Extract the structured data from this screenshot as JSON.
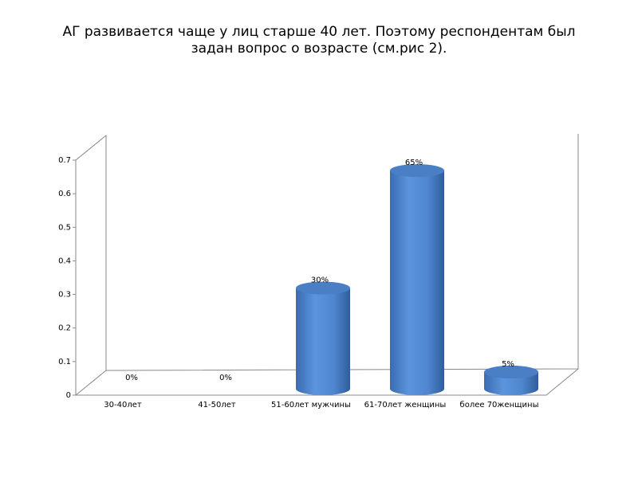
{
  "chart_data": {
    "type": "bar3d",
    "title": "АГ развивается чаще у лиц старше 40 лет. Поэтому респондентам был задан вопрос о возрасте (см.рис 2).",
    "categories": [
      "30-40лет",
      "41-50лет",
      "51-60лет мужчины",
      "61-70лет женщины",
      "более 70женщины"
    ],
    "values": [
      0,
      0,
      0.3,
      0.65,
      0.05
    ],
    "value_labels": [
      "0%",
      "0%",
      "30%",
      "65%",
      "5%"
    ],
    "color": "#4f81bd",
    "ylim": [
      0,
      0.7
    ],
    "yticks": [
      0,
      0.1,
      0.2,
      0.3,
      0.4,
      0.5,
      0.6,
      0.7
    ]
  }
}
